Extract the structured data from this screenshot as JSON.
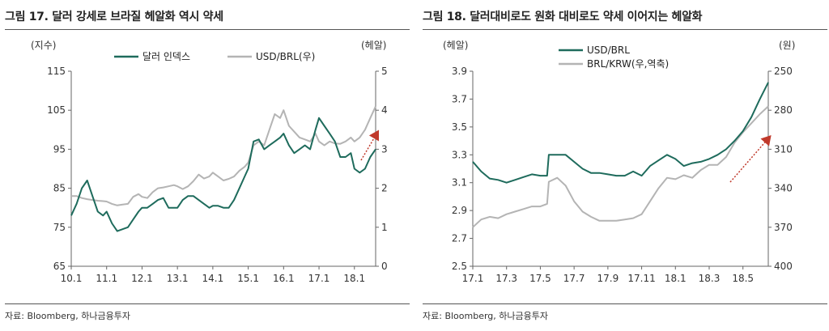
{
  "charts": [
    {
      "title": "그림 17. 달러 강세로 브라질 헤알화 역시 약세",
      "source": "자료: Bloomberg, 하나금융투자",
      "chart_data": {
        "type": "line",
        "left_axis_label": "(지수)",
        "right_axis_label": "(헤알)",
        "left_ticks": [
          "65",
          "75",
          "85",
          "95",
          "105",
          "115"
        ],
        "right_ticks": [
          "0",
          "1",
          "2",
          "3",
          "4",
          "5"
        ],
        "ylim_left": [
          65,
          115
        ],
        "ylim_right": [
          0,
          5
        ],
        "x_ticks": [
          "10.1",
          "11.1",
          "12.1",
          "13.1",
          "14.1",
          "15.1",
          "16.1",
          "17.1",
          "18.1"
        ],
        "xlim": [
          2010.0,
          2018.6
        ],
        "legend_placement": "top",
        "series": [
          {
            "name": "달러 인덱스",
            "axis": "left",
            "color": "#1e6b5c",
            "x": [
              2010.0,
              2010.15,
              2010.3,
              2010.45,
              2010.6,
              2010.75,
              2010.9,
              2011.0,
              2011.15,
              2011.3,
              2011.45,
              2011.6,
              2011.75,
              2011.9,
              2012.0,
              2012.15,
              2012.3,
              2012.45,
              2012.6,
              2012.75,
              2012.9,
              2013.0,
              2013.15,
              2013.3,
              2013.45,
              2013.6,
              2013.75,
              2013.9,
              2014.0,
              2014.15,
              2014.3,
              2014.45,
              2014.6,
              2014.75,
              2014.9,
              2015.0,
              2015.15,
              2015.3,
              2015.45,
              2015.6,
              2015.75,
              2015.9,
              2016.0,
              2016.15,
              2016.3,
              2016.45,
              2016.6,
              2016.75,
              2016.9,
              2017.0,
              2017.15,
              2017.3,
              2017.45,
              2017.6,
              2017.75,
              2017.9,
              2018.0,
              2018.15,
              2018.3,
              2018.45,
              2018.6
            ],
            "values": [
              78,
              81,
              85,
              87,
              83,
              79,
              78,
              79,
              76,
              74,
              74.5,
              75,
              77,
              79,
              80,
              80,
              81,
              82,
              82.5,
              80,
              80,
              80,
              82,
              83,
              83,
              82,
              81,
              80,
              80.5,
              80.5,
              80,
              80,
              82,
              85,
              88,
              90,
              97,
              97.5,
              95,
              96,
              97,
              98,
              99,
              96,
              94,
              95,
              96,
              95,
              100,
              103,
              101,
              99,
              97,
              93,
              93,
              94,
              90,
              89,
              90,
              93,
              95
            ]
          },
          {
            "name": "USD/BRL(우)",
            "axis": "right",
            "color": "#b4b4b4",
            "x": [
              2010.0,
              2010.15,
              2010.3,
              2010.45,
              2010.6,
              2010.75,
              2010.9,
              2011.0,
              2011.15,
              2011.3,
              2011.45,
              2011.6,
              2011.75,
              2011.9,
              2012.0,
              2012.15,
              2012.3,
              2012.45,
              2012.6,
              2012.75,
              2012.9,
              2013.0,
              2013.15,
              2013.3,
              2013.45,
              2013.6,
              2013.75,
              2013.9,
              2014.0,
              2014.15,
              2014.3,
              2014.45,
              2014.6,
              2014.75,
              2014.9,
              2015.0,
              2015.15,
              2015.3,
              2015.45,
              2015.6,
              2015.75,
              2015.9,
              2016.0,
              2016.15,
              2016.3,
              2016.45,
              2016.6,
              2016.75,
              2016.9,
              2017.0,
              2017.15,
              2017.3,
              2017.45,
              2017.6,
              2017.75,
              2017.9,
              2018.0,
              2018.15,
              2018.3,
              2018.45,
              2018.6
            ],
            "values": [
              1.8,
              1.8,
              1.75,
              1.72,
              1.7,
              1.68,
              1.67,
              1.66,
              1.6,
              1.56,
              1.58,
              1.6,
              1.78,
              1.85,
              1.78,
              1.75,
              1.9,
              2.0,
              2.02,
              2.05,
              2.08,
              2.05,
              1.98,
              2.05,
              2.18,
              2.35,
              2.25,
              2.3,
              2.4,
              2.3,
              2.2,
              2.24,
              2.3,
              2.45,
              2.55,
              2.66,
              3.1,
              3.2,
              3.1,
              3.5,
              3.9,
              3.8,
              4.0,
              3.6,
              3.45,
              3.3,
              3.25,
              3.2,
              3.4,
              3.2,
              3.1,
              3.2,
              3.15,
              3.14,
              3.2,
              3.3,
              3.2,
              3.3,
              3.5,
              3.8,
              4.1
            ]
          }
        ]
      }
    },
    {
      "title": "그림 18. 달러대비로도 원화 대비로도 약세 이어지는 헤알화",
      "source": "자료: Bloomberg, 하나금융투자",
      "chart_data": {
        "type": "line",
        "left_axis_label": "(헤알)",
        "right_axis_label": "(원)",
        "left_ticks": [
          "2.5",
          "2.7",
          "2.9",
          "3.1",
          "3.3",
          "3.5",
          "3.7",
          "3.9"
        ],
        "right_ticks": [
          "400",
          "370",
          "340",
          "310",
          "280",
          "250"
        ],
        "ylim_left": [
          2.5,
          3.9
        ],
        "ylim_right_top_to_bottom": [
          250,
          400
        ],
        "x_ticks": [
          "17.1",
          "17.3",
          "17.5",
          "17.7",
          "17.9",
          "17.11",
          "18.1",
          "18.3",
          "18.5"
        ],
        "xlim": [
          0,
          17.5
        ],
        "legend_placement": "top-left",
        "series": [
          {
            "name": "USD/BRL",
            "axis": "left",
            "color": "#1e6b5c",
            "x": [
              0,
              0.5,
              1,
              1.5,
              2,
              2.5,
              3,
              3.5,
              4,
              4.4,
              4.5,
              5,
              5.5,
              6,
              6.5,
              7,
              7.5,
              8,
              8.5,
              9,
              9.5,
              10,
              10.5,
              11,
              11.5,
              12,
              12.5,
              13,
              13.5,
              14,
              14.5,
              15,
              15.5,
              16,
              16.5,
              17,
              17.5
            ],
            "values": [
              3.25,
              3.18,
              3.13,
              3.12,
              3.1,
              3.12,
              3.14,
              3.16,
              3.15,
              3.15,
              3.3,
              3.3,
              3.3,
              3.25,
              3.2,
              3.17,
              3.17,
              3.16,
              3.15,
              3.15,
              3.18,
              3.15,
              3.22,
              3.26,
              3.3,
              3.27,
              3.22,
              3.24,
              3.25,
              3.27,
              3.3,
              3.34,
              3.4,
              3.47,
              3.57,
              3.7,
              3.82
            ]
          },
          {
            "name": "BRL/KRW(우,역축)",
            "axis": "right",
            "color": "#b4b4b4",
            "x": [
              0,
              0.5,
              1,
              1.5,
              2,
              2.5,
              3,
              3.5,
              4,
              4.4,
              4.5,
              5,
              5.5,
              6,
              6.5,
              7,
              7.5,
              8,
              8.5,
              9,
              9.5,
              10,
              10.5,
              11,
              11.5,
              12,
              12.5,
              13,
              13.5,
              14,
              14.5,
              15,
              15.5,
              16,
              16.5,
              17,
              17.5
            ],
            "values": [
              370,
              364,
              362,
              363,
              360,
              358,
              356,
              354,
              354,
              352,
              335,
              332,
              338,
              350,
              358,
              362,
              365,
              365,
              365,
              364,
              363,
              360,
              350,
              340,
              332,
              333,
              330,
              332,
              326,
              322,
              322,
              316,
              305,
              297,
              290,
              283,
              277
            ]
          }
        ]
      }
    }
  ]
}
